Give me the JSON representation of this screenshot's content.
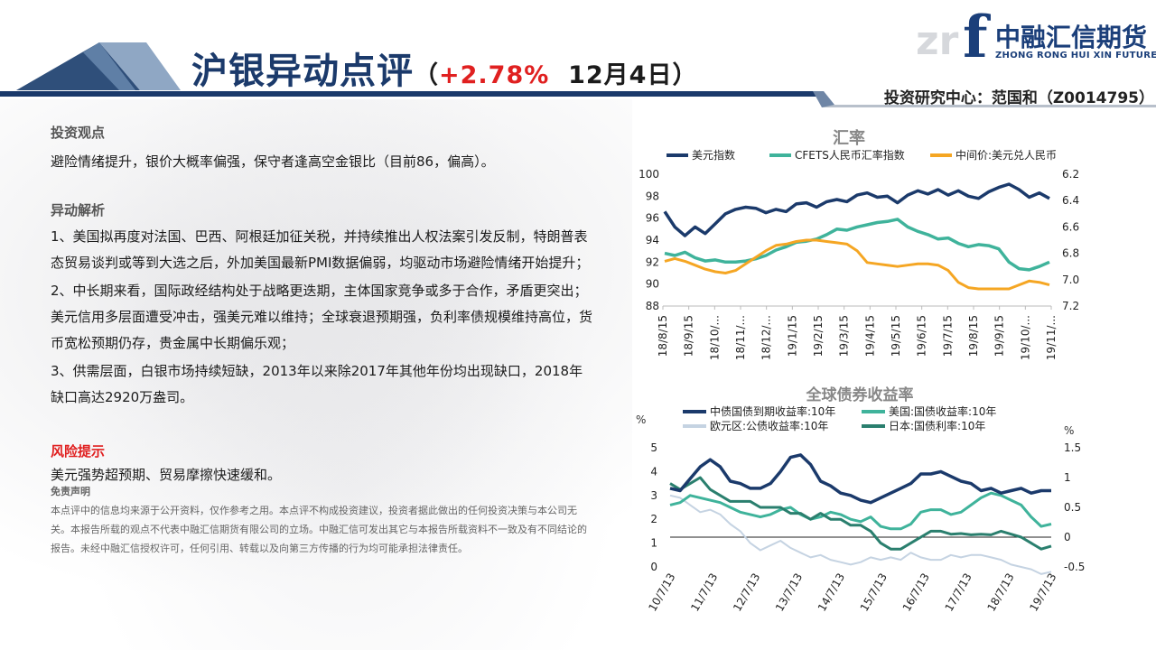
{
  "header": {
    "title_main": "沪银异动点评",
    "title_paren_open": "（",
    "title_change": "+2.78%",
    "title_date": "12月4日",
    "title_paren_close": "）",
    "analyst": "投资研究中心：范国和（Z0014795）"
  },
  "logo": {
    "mark_letter": "f",
    "faded_text": "zr",
    "cn_name": "中融汇信期货",
    "en_name": "ZHONG RONG HUI XIN FUTURES"
  },
  "colors": {
    "navy": "#1b3a6b",
    "teal": "#3fb39b",
    "orange": "#f5a623",
    "dark_green": "#2a7f6e",
    "light_gray_blue": "#c5d3e2",
    "red": "#e02020"
  },
  "content": {
    "view_title": "投资观点",
    "view_text": "避险情绪提升，银价大概率偏强，保守者逢高空金银比（目前86，偏高）。",
    "analysis_title": "异动解析",
    "analysis_1": "1、美国拟再度对法国、巴西、阿根廷加征关税，并持续推出人权法案引发反制，特朗普表态贸易谈判或等到大选之后，外加美国最新PMI数据偏弱，均驱动市场避险情绪开始提升；",
    "analysis_2": "2、中长期来看，国际政经结构处于战略更迭期，主体国家竞争或多于合作，矛盾更突出；美元信用多层面遭受冲击，强美元难以维持；全球衰退预期强，负利率债规模维持高位，货币宽松预期仍存，贵金属中长期偏乐观；",
    "analysis_3": "3、供需层面，白银市场持续短缺，2013年以来除2017年其他年份均出现缺口，2018年缺口高达2920万盎司。",
    "risk_title": "风险提示",
    "risk_text": "美元强势超预期、贸易摩擦快速缓和。",
    "disclaimer_title": "免责声明",
    "disclaimer_text": "本点评中的信息均来源于公开资料，仅作参考之用。本点评不构成投资建议，投资者据此做出的任何投资决策与本公司无关。本报告所载的观点不代表中融汇信期货有限公司的立场。中融汇信可发出其它与本报告所载资料不一致及有不同结论的报告。未经中融汇信授权许可，任何引用、转载以及向第三方传播的行为均可能承担法律责任。"
  },
  "chart_data": [
    {
      "type": "line",
      "title": "汇率",
      "x_ticks": [
        "18/8/15",
        "18/9/15",
        "18/10/...",
        "18/11/...",
        "18/12/...",
        "19/1/15",
        "19/2/15",
        "19/3/15",
        "19/4/15",
        "19/5/15",
        "19/6/15",
        "19/7/15",
        "19/8/15",
        "19/9/15",
        "19/10/...",
        "19/11/..."
      ],
      "y_left_ticks": [
        "100",
        "98",
        "96",
        "94",
        "92",
        "90",
        "88"
      ],
      "y_right_ticks": [
        "6.2",
        "6.4",
        "6.6",
        "6.8",
        "7.0",
        "7.2"
      ],
      "ylim_left": [
        88,
        100
      ],
      "ylim_right_inverted": [
        6.2,
        7.2
      ],
      "legend_position": "top",
      "series": [
        {
          "name": "美元指数",
          "axis": "left",
          "color": "#1b3a6b",
          "values": [
            96.6,
            95.2,
            94.4,
            95.2,
            94.6,
            95.5,
            96.4,
            96.8,
            97.0,
            96.9,
            96.5,
            96.8,
            96.6,
            97.3,
            97.4,
            97.0,
            97.5,
            97.7,
            97.5,
            98.1,
            98.3,
            97.9,
            98.0,
            97.4,
            98.1,
            98.5,
            98.2,
            98.6,
            98.1,
            98.5,
            98.0,
            97.8,
            98.4,
            98.8,
            99.1,
            98.6,
            97.9,
            98.3,
            97.8
          ]
        },
        {
          "name": "CFETS人民币汇率指数",
          "axis": "left",
          "color": "#3fb39b",
          "values": [
            92.8,
            92.6,
            92.9,
            92.4,
            92.1,
            92.2,
            92.0,
            92.0,
            92.1,
            92.3,
            92.6,
            93.1,
            93.4,
            93.8,
            93.9,
            94.1,
            94.5,
            95.0,
            94.9,
            95.2,
            95.4,
            95.6,
            95.7,
            95.9,
            95.2,
            94.8,
            94.5,
            94.1,
            94.2,
            93.7,
            93.4,
            93.6,
            93.5,
            93.2,
            92.0,
            91.4,
            91.3,
            91.6,
            92.0
          ]
        },
        {
          "name": "中间价:美元兑人民币",
          "axis": "right",
          "color": "#f5a623",
          "values": [
            6.86,
            6.84,
            6.86,
            6.89,
            6.92,
            6.94,
            6.95,
            6.93,
            6.88,
            6.83,
            6.78,
            6.74,
            6.73,
            6.71,
            6.7,
            6.7,
            6.71,
            6.72,
            6.73,
            6.78,
            6.87,
            6.88,
            6.89,
            6.9,
            6.89,
            6.88,
            6.88,
            6.89,
            6.93,
            7.02,
            7.06,
            7.07,
            7.07,
            7.07,
            7.07,
            7.04,
            7.01,
            7.02,
            7.04
          ]
        }
      ]
    },
    {
      "type": "line",
      "title": "全球债券收益率",
      "left_unit": "%",
      "right_unit": "%",
      "x_ticks": [
        "10/7/13",
        "11/7/13",
        "12/7/13",
        "13/7/13",
        "14/7/13",
        "15/7/13",
        "16/7/13",
        "17/7/13",
        "18/7/13",
        "19/7/13"
      ],
      "y_left_ticks": [
        "5",
        "4",
        "3",
        "2",
        "1",
        "0"
      ],
      "y_right_ticks": [
        "1.5",
        "1",
        "0.5",
        "0",
        "-0.5"
      ],
      "ylim_left": [
        0,
        5
      ],
      "ylim_right": [
        -0.5,
        1.5
      ],
      "legend_position": "top",
      "series": [
        {
          "name": "中债国债到期收益率:10年",
          "axis": "left",
          "color": "#1b3a6b",
          "values": [
            3.3,
            3.2,
            3.7,
            4.2,
            4.5,
            4.2,
            3.6,
            3.5,
            3.3,
            3.3,
            3.5,
            4.0,
            4.6,
            4.7,
            4.3,
            3.6,
            3.4,
            3.1,
            3.0,
            2.8,
            2.7,
            2.9,
            3.1,
            3.3,
            3.5,
            3.9,
            3.9,
            4.0,
            3.8,
            3.6,
            3.5,
            3.2,
            3.3,
            3.1,
            3.2,
            3.3,
            3.1,
            3.2,
            3.2
          ]
        },
        {
          "name": "美国:国债收益率:10年",
          "axis": "left",
          "color": "#3fb39b",
          "values": [
            2.6,
            2.7,
            3.0,
            2.9,
            2.8,
            2.7,
            2.5,
            2.3,
            2.2,
            2.1,
            2.2,
            2.4,
            2.5,
            2.2,
            2.0,
            2.1,
            2.3,
            2.2,
            2.0,
            1.9,
            2.1,
            1.7,
            1.6,
            1.6,
            1.8,
            2.3,
            2.4,
            2.4,
            2.2,
            2.3,
            2.6,
            2.9,
            3.1,
            3.0,
            2.8,
            2.6,
            2.1,
            1.7,
            1.8
          ]
        },
        {
          "name": "欧元区:公债收益率:10年",
          "axis": "left",
          "color": "#c5d3e2",
          "values": [
            3.0,
            2.9,
            2.6,
            2.3,
            2.4,
            2.2,
            1.8,
            1.5,
            1.0,
            0.7,
            0.9,
            1.1,
            0.8,
            0.6,
            0.4,
            0.5,
            0.3,
            0.2,
            0.1,
            0.2,
            0.4,
            0.3,
            0.4,
            0.3,
            0.6,
            0.4,
            0.3,
            0.3,
            0.5,
            0.4,
            0.5,
            0.5,
            0.4,
            0.3,
            0.1,
            0.0,
            -0.1,
            -0.3,
            -0.2
          ]
        },
        {
          "name": "日本:国债利率:10年",
          "axis": "right",
          "color": "#2a7f6e",
          "values": [
            0.9,
            0.8,
            0.9,
            1.0,
            0.8,
            0.7,
            0.6,
            0.6,
            0.6,
            0.5,
            0.5,
            0.5,
            0.4,
            0.4,
            0.3,
            0.4,
            0.3,
            0.3,
            0.2,
            0.2,
            0.1,
            -0.1,
            -0.2,
            -0.2,
            -0.1,
            0.0,
            0.1,
            0.1,
            0.05,
            0.06,
            0.04,
            0.05,
            0.04,
            0.1,
            0.05,
            0.0,
            -0.1,
            -0.2,
            -0.15
          ]
        }
      ]
    }
  ]
}
